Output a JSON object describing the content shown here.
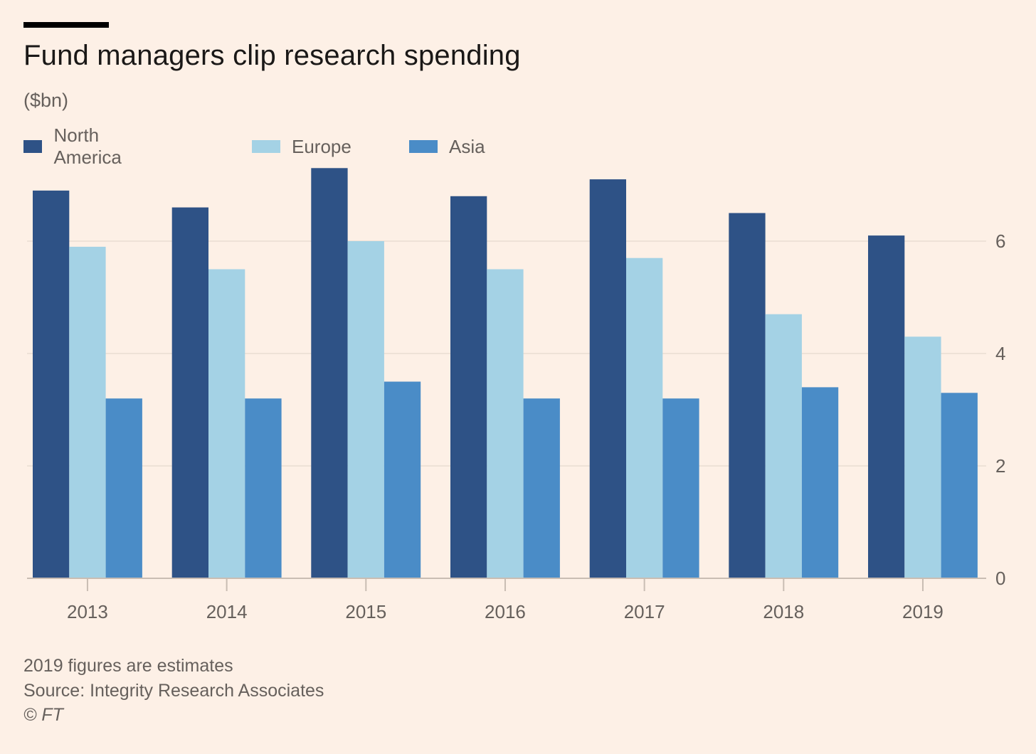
{
  "chart_data": {
    "type": "bar",
    "title": "Fund managers clip research spending",
    "subtitle": "($bn)",
    "categories": [
      "2013",
      "2014",
      "2015",
      "2016",
      "2017",
      "2018",
      "2019"
    ],
    "series": [
      {
        "name": "North America",
        "color": "#2e5286",
        "values": [
          6.9,
          6.6,
          7.3,
          6.8,
          7.1,
          6.5,
          6.1
        ]
      },
      {
        "name": "Europe",
        "color": "#a4d2e5",
        "values": [
          5.9,
          5.5,
          6.0,
          5.5,
          5.7,
          4.7,
          4.3
        ]
      },
      {
        "name": "Asia",
        "color": "#4a8cc7",
        "values": [
          3.2,
          3.2,
          3.5,
          3.2,
          3.2,
          3.4,
          3.3
        ]
      }
    ],
    "y_ticks": [
      "0",
      "2",
      "4",
      "6"
    ],
    "ylim": [
      0,
      7.3
    ],
    "xlabel": "",
    "ylabel": "",
    "grid": true,
    "y_axis_side": "right",
    "legend_position": "top-left"
  },
  "footnotes": {
    "note": "2019 figures are estimates",
    "source": "Source: Integrity Research Associates",
    "copyright": "© FT"
  },
  "colors": {
    "background": "#fdf0e6",
    "gridline": "#e9ddd2",
    "axis": "#c9bdb3"
  }
}
